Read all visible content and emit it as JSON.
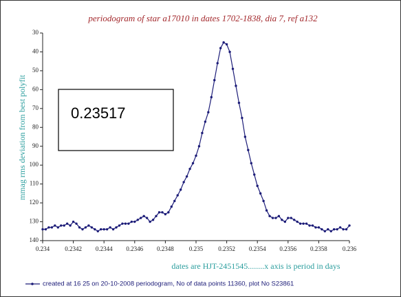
{
  "chart_data": {
    "type": "line",
    "title": "periodogram of star a17010 in dates 1702-1838, dia 7, ref a132",
    "y_label": "mmag rms deviation from best polyfit",
    "x_label": "dates are HJT-2451545........x axis is period in days",
    "annotation": "0.23517",
    "xlim": [
      0.234,
      0.236
    ],
    "xticks": [
      0.234,
      0.2342,
      0.2344,
      0.2346,
      0.2348,
      0.235,
      0.2352,
      0.2354,
      0.2356,
      0.2358,
      0.236
    ],
    "ylim": [
      140,
      30
    ],
    "yticks": [
      30,
      40,
      50,
      60,
      70,
      80,
      90,
      100,
      110,
      120,
      130,
      140
    ],
    "x": [
      0.234,
      0.23402,
      0.23404,
      0.23406,
      0.23408,
      0.2341,
      0.23412,
      0.23414,
      0.23416,
      0.23418,
      0.2342,
      0.23422,
      0.23424,
      0.23426,
      0.23428,
      0.2343,
      0.23432,
      0.23434,
      0.23436,
      0.23438,
      0.2344,
      0.23442,
      0.23444,
      0.23446,
      0.23448,
      0.2345,
      0.23452,
      0.23454,
      0.23456,
      0.23458,
      0.2346,
      0.23462,
      0.23464,
      0.23466,
      0.23468,
      0.2347,
      0.23472,
      0.23474,
      0.23476,
      0.23478,
      0.2348,
      0.23482,
      0.23484,
      0.23486,
      0.23488,
      0.2349,
      0.23492,
      0.23494,
      0.23496,
      0.23498,
      0.235,
      0.23502,
      0.23504,
      0.23506,
      0.23508,
      0.2351,
      0.23512,
      0.23514,
      0.23516,
      0.23518,
      0.2352,
      0.23522,
      0.23524,
      0.23526,
      0.23528,
      0.2353,
      0.23532,
      0.23534,
      0.23536,
      0.23538,
      0.2354,
      0.23542,
      0.23544,
      0.23546,
      0.23548,
      0.2355,
      0.23552,
      0.23554,
      0.23556,
      0.23558,
      0.2356,
      0.23562,
      0.23564,
      0.23566,
      0.23568,
      0.2357,
      0.23572,
      0.23574,
      0.23576,
      0.23578,
      0.2358,
      0.23582,
      0.23584,
      0.23586,
      0.23588,
      0.2359,
      0.23592,
      0.23594,
      0.23596,
      0.23598,
      0.236
    ],
    "series": [
      {
        "name": "created at 16 25 on 20-10-2008 periodogram, No of data points 11360,  plot No S23861",
        "color": "#1c1c78",
        "values": [
          134,
          134,
          133,
          133,
          132,
          133,
          132,
          132,
          131,
          132,
          130,
          131,
          133,
          134,
          133,
          132,
          133,
          134,
          135,
          134,
          134,
          134,
          133,
          134,
          133,
          132,
          131,
          131,
          131,
          130,
          130,
          129,
          128,
          127,
          128,
          130,
          129,
          127,
          125,
          125,
          126,
          125,
          122,
          119,
          116,
          113,
          109,
          106,
          102,
          99,
          95,
          90,
          83,
          77,
          72,
          64,
          55,
          46,
          38,
          35,
          36,
          40,
          49,
          58,
          67,
          75,
          85,
          92,
          99,
          105,
          111,
          115,
          119,
          124,
          127,
          128,
          128,
          127,
          129,
          130,
          128,
          128,
          129,
          130,
          131,
          131,
          131,
          132,
          132,
          133,
          133,
          134,
          135,
          134,
          135,
          134,
          134,
          133,
          134,
          134,
          132
        ]
      }
    ]
  }
}
